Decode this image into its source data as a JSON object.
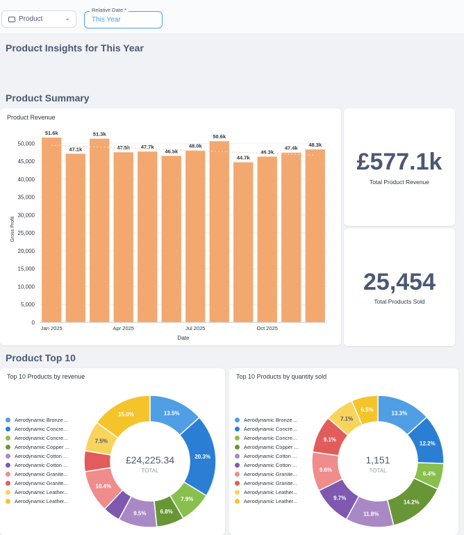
{
  "filters": {
    "product_label": "Product",
    "date_label": "Relative Date *",
    "date_value": "This Year"
  },
  "page_title": "Product Insights for This Year",
  "sections": {
    "summary": "Product Summary",
    "top10": "Product Top 10"
  },
  "kpis": {
    "revenue_value": "£577.1k",
    "revenue_label": "Total Product Revenue",
    "products_value": "25,454",
    "products_label": "Total Products Sold"
  },
  "colors": {
    "bar": "#f2a86f",
    "accent": "#509ee3",
    "palette": [
      "#509ee3",
      "#2a7fd4",
      "#88bf4d",
      "#689636",
      "#a989c5",
      "#7f58b0",
      "#ef8c8c",
      "#e25c5c",
      "#f9d45c",
      "#f5c42b"
    ]
  },
  "chart_data": [
    {
      "type": "bar",
      "title": "Product Revenue",
      "xlabel": "Date",
      "ylabel": "Gross Profit",
      "ylim": [
        0,
        52000
      ],
      "y_ticks": [
        0,
        5000,
        10000,
        15000,
        20000,
        25000,
        30000,
        35000,
        40000,
        45000,
        50000
      ],
      "y_tick_labels": [
        "0",
        "5,000",
        "10,000",
        "15,000",
        "20,000",
        "25,000",
        "30,000",
        "35,000",
        "40,000",
        "45,000",
        "50,000"
      ],
      "categories": [
        "2025-01",
        "2025-02",
        "2025-03",
        "2025-04",
        "2025-05",
        "2025-06",
        "2025-07",
        "2025-08",
        "2025-09",
        "2025-10",
        "2025-11",
        "2025-12"
      ],
      "x_tick_labels": {
        "0": "Jan 2025",
        "3": "Apr 2025",
        "6": "Jul 2025",
        "9": "Oct 2025"
      },
      "values": [
        51600,
        47100,
        51300,
        47500,
        47700,
        46500,
        48000,
        50600,
        44700,
        46300,
        47400,
        48300
      ],
      "data_labels": [
        "51.6k",
        "47.1k",
        "51.3k",
        "47.5k",
        "47.7k",
        "46.5k",
        "48.0k",
        "50.6k",
        "44.7k",
        "46.3k",
        "47.4k",
        "48.3k"
      ],
      "trend_line": true,
      "grid": true
    },
    {
      "type": "pie",
      "title": "Top 10 Products by revenue",
      "total_value": "£24,225.34",
      "total_label": "TOTAL",
      "labels": [
        "Aerodynamic Bronze ...",
        "Aerodynamic Concre...",
        "Aerodynamic Concre...",
        "Aerodynamic Copper ...",
        "Aerodynamic Cotton ...",
        "Aerodynamic Cotton ...",
        "Aerodynamic Granite...",
        "Aerodynamic Granite...",
        "Aerodynamic Leather...",
        "Aerodynamic Leather..."
      ],
      "values": [
        13.5,
        20.3,
        7.9,
        6.8,
        9.5,
        4.3,
        10.4,
        5.1,
        7.5,
        15.0
      ],
      "slice_labels": [
        "13.5%",
        "20.3%",
        "7.9%",
        "6.8%",
        "9.5%",
        "",
        "10.4%",
        "",
        "7.5%",
        "15.0%"
      ]
    },
    {
      "type": "pie",
      "title": "Top 10 Products by quantity sold",
      "total_value": "1,151",
      "total_label": "TOTAL",
      "labels": [
        "Aerodynamic Bronze ...",
        "Aerodynamic Concre...",
        "Aerodynamic Concre...",
        "Aerodynamic Copper ...",
        "Aerodynamic Cotton ...",
        "Aerodynamic Cotton ...",
        "Aerodynamic Granite...",
        "Aerodynamic Granite...",
        "Aerodynamic Leather...",
        "Aerodynamic Leather..."
      ],
      "values": [
        13.3,
        12.2,
        6.4,
        14.2,
        11.8,
        9.7,
        9.6,
        9.1,
        7.1,
        6.5
      ],
      "slice_labels": [
        "13.3%",
        "12.2%",
        "6.4%",
        "14.2%",
        "11.8%",
        "9.7%",
        "9.6%",
        "9.1%",
        "7.1%",
        "6.5%"
      ]
    }
  ]
}
